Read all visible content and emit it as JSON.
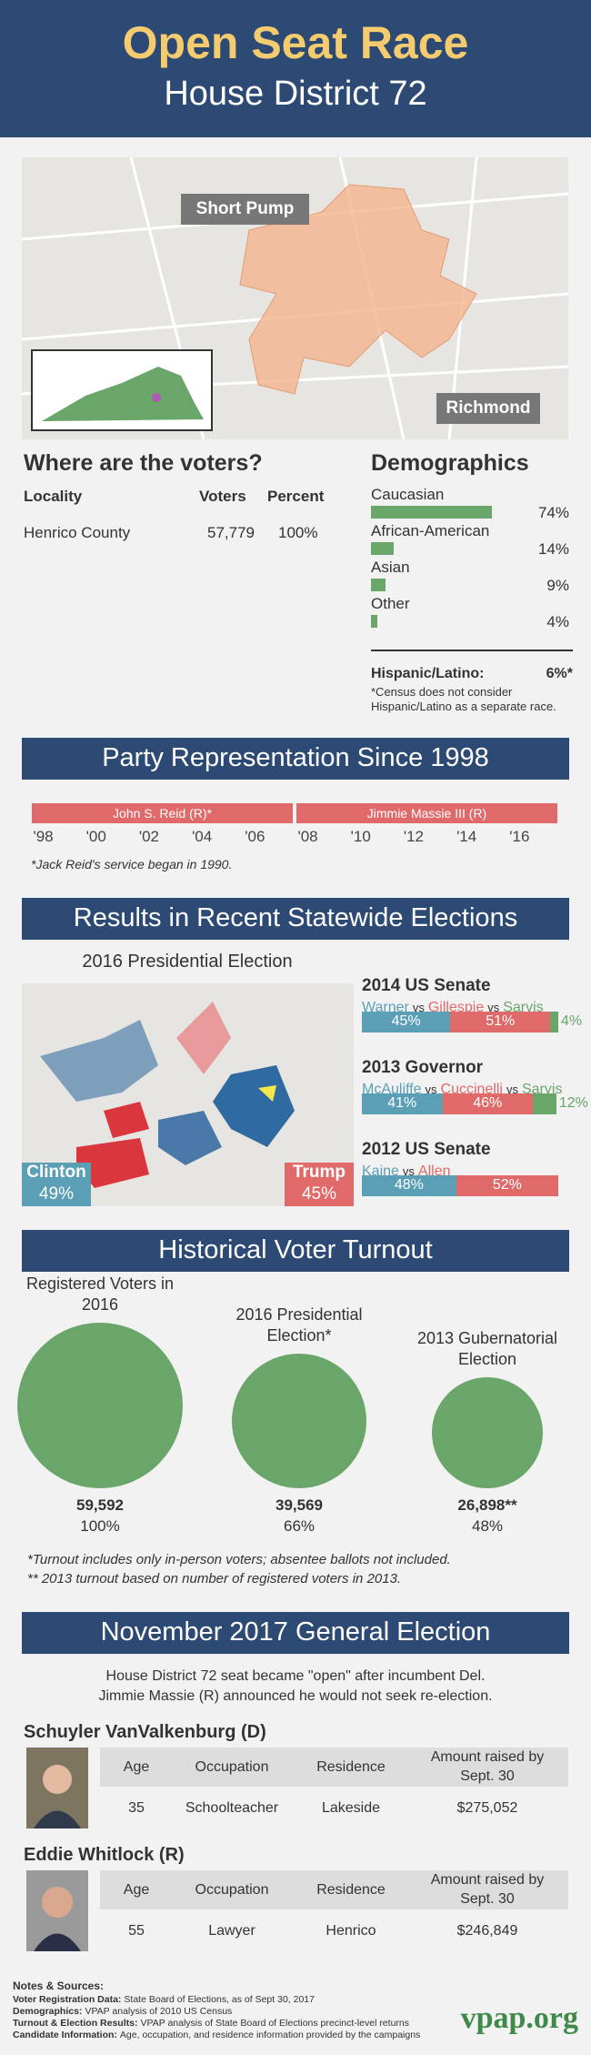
{
  "header": {
    "title": "Open Seat Race",
    "subtitle": "House District 72"
  },
  "map": {
    "labels": [
      "Short Pump",
      "Richmond"
    ]
  },
  "voters": {
    "title": "Where are the voters?",
    "columns": [
      "Locality",
      "Voters",
      "Percent"
    ],
    "rows": [
      [
        "Henrico County",
        "57,779",
        "100%"
      ]
    ]
  },
  "demographics": {
    "title": "Demographics",
    "categories": [
      "Caucasian",
      "African-American",
      "Asian",
      "Other"
    ],
    "values": [
      74,
      14,
      9,
      4
    ],
    "value_labels": [
      "74%",
      "14%",
      "9%",
      "4%"
    ],
    "color": "#6aa56a",
    "hispanic": {
      "label": "Hispanic/Latino:",
      "value": "6%*"
    },
    "note": "*Census does not consider Hispanic/Latino as a separate race."
  },
  "party": {
    "title": "Party Representation Since 1998",
    "xlim": [
      1998,
      2017
    ],
    "xticks": [
      {
        "value": 1998,
        "label": "'98"
      },
      {
        "value": 2000,
        "label": "'00"
      },
      {
        "value": 2002,
        "label": "'02"
      },
      {
        "value": 2004,
        "label": "'04"
      },
      {
        "value": 2006,
        "label": "'06"
      },
      {
        "value": 2008,
        "label": "'08"
      },
      {
        "value": 2010,
        "label": "'10"
      },
      {
        "value": 2012,
        "label": "'12"
      },
      {
        "value": 2014,
        "label": "'14"
      },
      {
        "value": 2016,
        "label": "'16"
      }
    ],
    "color": "#e06a6a",
    "terms": [
      {
        "name": "John S. Reid (R)*",
        "from": 1998,
        "to": 2007
      },
      {
        "name": "Jimmie Massie III (R)",
        "from": 2008,
        "to": 2017
      }
    ],
    "note": "*Jack Reid's service began in 1990."
  },
  "results": {
    "title": "Results in Recent Statewide Elections",
    "map_title": "2016 Presidential Election",
    "map_labels": [
      {
        "name": "Clinton",
        "label": "49%",
        "color": "#5a9fb5"
      },
      {
        "name": "Trump",
        "label": "45%",
        "color": "#e06a6a"
      }
    ],
    "separator": "vs",
    "races": [
      {
        "title": "2014 US Senate",
        "series": [
          {
            "name": "Warner",
            "color": "#5a9fb5",
            "value": 45,
            "value_label": "45%"
          },
          {
            "name": "Gillespie",
            "color": "#e06a6a",
            "value": 51,
            "value_label": "51%"
          },
          {
            "name": "Sarvis",
            "color": "#6aa56a",
            "value": 4,
            "value_label": "4%"
          }
        ]
      },
      {
        "title": "2013 Governor",
        "series": [
          {
            "name": "McAuliffe",
            "color": "#5a9fb5",
            "value": 41,
            "value_label": "41%"
          },
          {
            "name": "Cuccinelli",
            "color": "#e06a6a",
            "value": 46,
            "value_label": "46%"
          },
          {
            "name": "Sarvis",
            "color": "#6aa56a",
            "value": 12,
            "value_label": "12%"
          }
        ]
      },
      {
        "title": "2012 US Senate",
        "series": [
          {
            "name": "Kaine",
            "color": "#5a9fb5",
            "value": 48,
            "value_label": "48%"
          },
          {
            "name": "Allen",
            "color": "#e06a6a",
            "value": 52,
            "value_label": "52%"
          }
        ]
      }
    ]
  },
  "turnout": {
    "title": "Historical Voter Turnout",
    "color": "#6aa56a",
    "items": [
      {
        "title": "Registered Voters in 2016",
        "value": 59592,
        "value_label": "59,592",
        "percent": "100%"
      },
      {
        "title": "2016 Presidential Election*",
        "value": 39569,
        "value_label": "39,569",
        "percent": "66%"
      },
      {
        "title": "2013 Gubernatorial Election",
        "value": 26898,
        "value_label": "26,898**",
        "percent": "48%"
      }
    ],
    "notes": [
      "*Turnout includes only in-person voters; absentee ballots not included.",
      "** 2013 turnout based on number of registered voters in 2013."
    ]
  },
  "election": {
    "title": "November 2017 General Election",
    "intro": "House District 72 seat became \"open\" after incumbent Del. Jimmie Massie (R) announced he would not seek re-election.",
    "columns": [
      "Age",
      "Occupation",
      "Residence",
      "Amount raised by Sept. 30"
    ],
    "candidates": [
      {
        "name": "Schuyler VanValkenburg (D)",
        "row": [
          "35",
          "Schoolteacher",
          "Lakeside",
          "$275,052"
        ]
      },
      {
        "name": "Eddie Whitlock (R)",
        "row": [
          "55",
          "Lawyer",
          "Henrico",
          "$246,849"
        ]
      }
    ]
  },
  "footer": {
    "heading": "Notes & Sources:",
    "notes": [
      {
        "label": "Voter Registration Data:",
        "text": "State Board of Elections, as of Sept 30, 2017"
      },
      {
        "label": "Demographics:",
        "text": "VPAP analysis of 2010 US Census"
      },
      {
        "label": "Turnout & Election Results:",
        "text": "VPAP analysis of State Board of Elections precinct-level returns"
      },
      {
        "label": "Candidate Information:",
        "text": "Age, occupation, and residence information provided by the campaigns"
      }
    ],
    "logo": "vpap.org"
  }
}
